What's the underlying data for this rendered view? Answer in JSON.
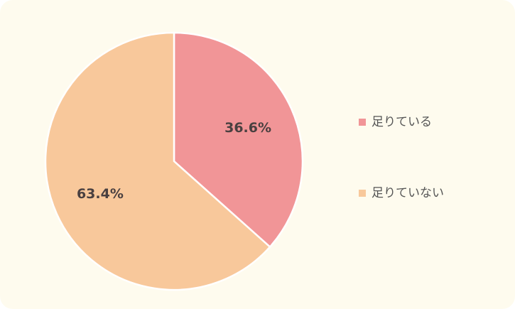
{
  "chart_data": {
    "type": "pie",
    "categories": [
      "足りている",
      "足りていない"
    ],
    "values": [
      36.6,
      63.4
    ],
    "value_labels": [
      "36.6%",
      "63.4%"
    ],
    "colors": [
      "#f19597",
      "#f8c89b"
    ],
    "legend": "right"
  }
}
